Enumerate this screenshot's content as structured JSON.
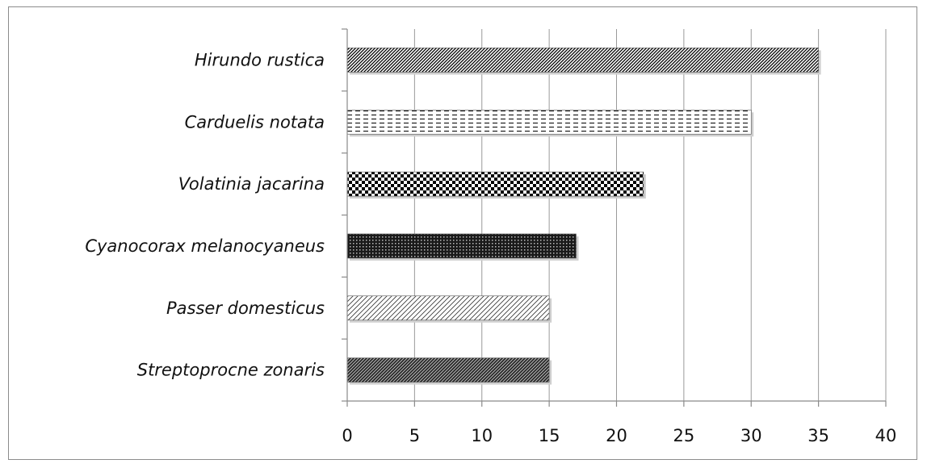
{
  "chart_data": {
    "type": "bar",
    "orientation": "horizontal",
    "categories": [
      "Hirundo rustica",
      "Carduelis notata",
      "Volatinia jacarina",
      "Cyanocorax melanocyaneus",
      "Passer domesticus",
      "Streptoprocne zonaris"
    ],
    "values": [
      35,
      30,
      22,
      17,
      15,
      15
    ],
    "xlim": [
      0,
      40
    ],
    "xticks": [
      "0",
      "5",
      "10",
      "15",
      "20",
      "25",
      "30",
      "35",
      "40"
    ],
    "grid": "vertical",
    "bar_fill": "patterned",
    "patterns": [
      "dense-diagonal",
      "dashed-horizontal",
      "checkerboard",
      "dark-cross",
      "light-diagonal",
      "dark-diagonal"
    ],
    "colors": {
      "bar_ink": "#000000",
      "bar_bg": "#ffffff",
      "grid": "#9a9a9a"
    }
  }
}
